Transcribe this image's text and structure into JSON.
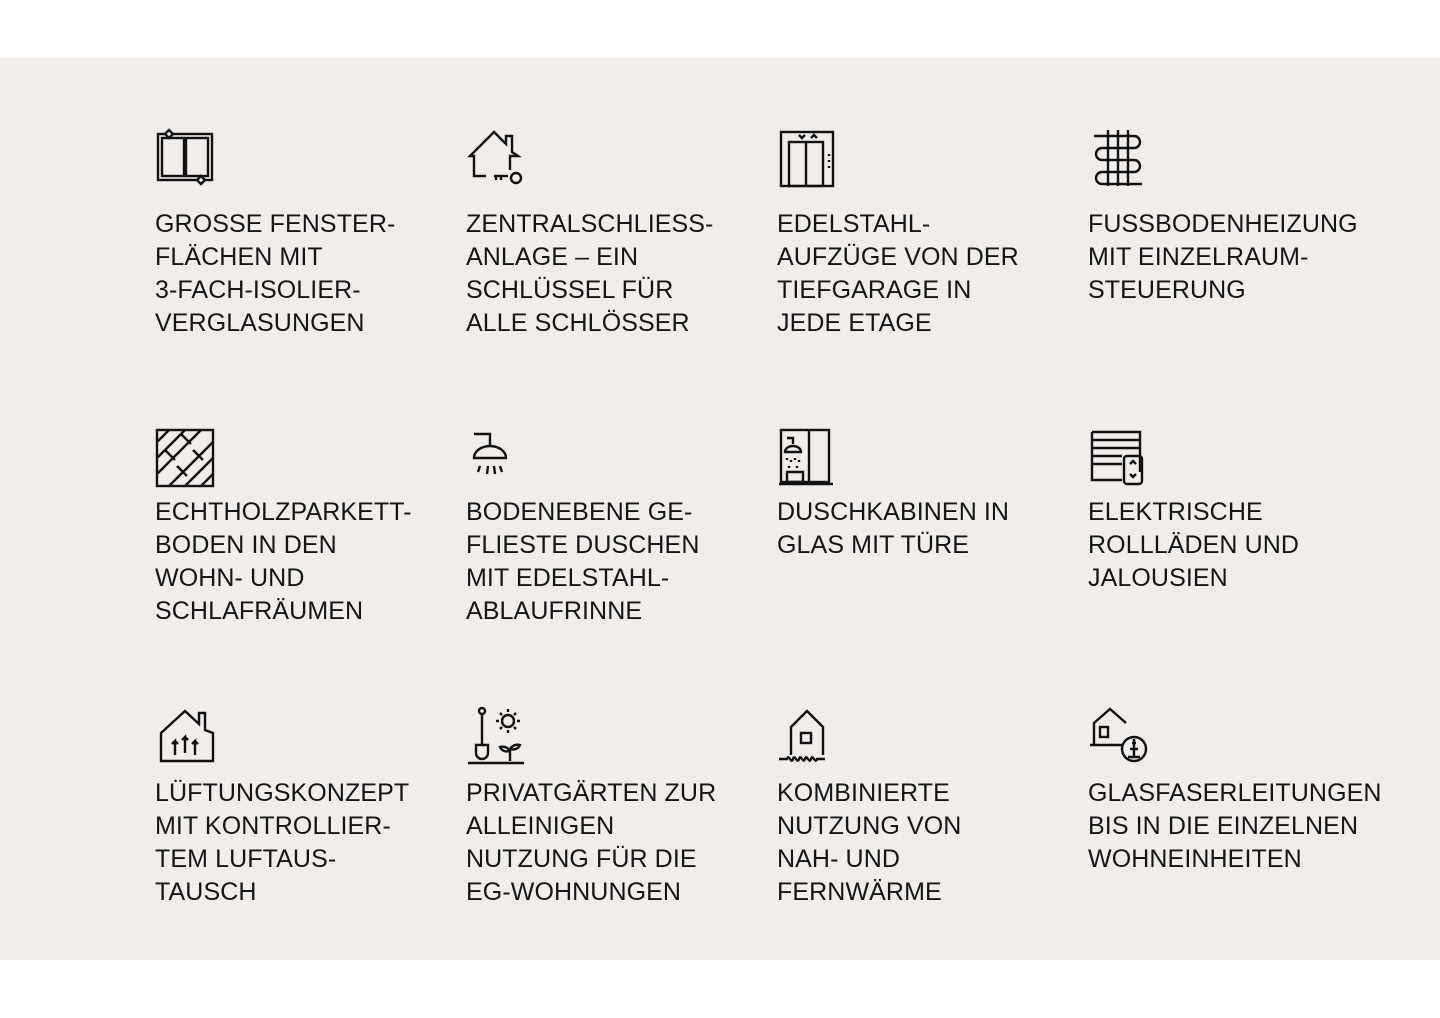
{
  "features": [
    {
      "icon": "window-icon",
      "text": "GROSSE FENSTER-\nFLÄCHEN MIT\n3-FACH-ISOLIER-\nVERGLASUNGEN"
    },
    {
      "icon": "house-key-icon",
      "text": "ZENTRALSCHLIESS-\nANLAGE – EIN\nSCHLÜSSEL FÜR\nALLE SCHLÖSSER"
    },
    {
      "icon": "elevator-icon",
      "text": "EDELSTAHL-\nAUFZÜGE VON DER\nTIEFGARAGE IN\nJEDE ETAGE"
    },
    {
      "icon": "floor-heating-icon",
      "text": "FUSSBODENHEIZUNG\nMIT EINZELRAUM-\nSTEUERUNG"
    },
    {
      "icon": "parquet-icon",
      "text": "ECHTHOLZPARKETT-\nBODEN IN DEN\nWOHN- UND\nSCHLAFRÄUMEN"
    },
    {
      "icon": "shower-icon",
      "text": "BODENEBENE GE-\nFLIESTE DUSCHEN\nMIT EDELSTAHL-\nABLAUFRINNE"
    },
    {
      "icon": "shower-cabin-icon",
      "text": "DUSCHKABINEN IN\nGLAS MIT TÜRE"
    },
    {
      "icon": "roller-shutter-icon",
      "text": "ELEKTRISCHE\nROLLLÄDEN UND\nJALOUSIEN"
    },
    {
      "icon": "ventilation-house-icon",
      "text": "LÜFTUNGSKONZEPT\nMIT KONTROLLIER-\nTEM LUFTAUS-\nTAUSCH"
    },
    {
      "icon": "garden-icon",
      "text": "PRIVATGÄRTEN ZUR\nALLEINIGEN\nNUTZUNG FÜR DIE\nEG-WOHNUNGEN"
    },
    {
      "icon": "district-heating-icon",
      "text": "KOMBINIERTE\nNUTZUNG VON\nNAH- UND\nFERNWÄRME"
    },
    {
      "icon": "fiber-optic-house-icon",
      "text": "GLASFASERLEITUNGEN\nBIS IN DIE EINZELNEN\nWOHNEINHEITEN"
    }
  ]
}
